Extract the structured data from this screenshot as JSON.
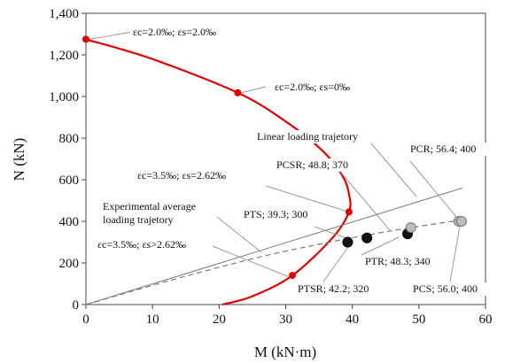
{
  "chart_data": {
    "type": "line",
    "xlabel": "M (kN·m)",
    "ylabel": "N (kN)",
    "xlim": [
      0,
      60
    ],
    "ylim": [
      0,
      1400
    ],
    "x_ticks": [
      "0",
      "10",
      "20",
      "30",
      "40",
      "50",
      "60"
    ],
    "y_ticks": [
      "0",
      "200",
      "400",
      "600",
      "800",
      "1,000",
      "1,200",
      "1,400"
    ],
    "grid": false,
    "series": [
      {
        "name": "",
        "style": "red-curve",
        "points": [
          [
            0,
            1275
          ],
          [
            10,
            1180
          ],
          [
            22.8,
            1018
          ],
          [
            30,
            880
          ],
          [
            35.5,
            740
          ],
          [
            38.5,
            620
          ],
          [
            39.5,
            530
          ],
          [
            39.5,
            445
          ],
          [
            37,
            320
          ],
          [
            31,
            140
          ],
          [
            25,
            40
          ],
          [
            20.5,
            0
          ]
        ]
      },
      {
        "name": "Linear loading trajetory",
        "style": "solid-gray",
        "points": [
          [
            0,
            0
          ],
          [
            56.5,
            560
          ]
        ]
      },
      {
        "name": "Experimental average loading trajetory",
        "style": "dashed-gray",
        "points": [
          [
            0,
            0
          ],
          [
            12,
            110
          ],
          [
            25,
            220
          ],
          [
            35,
            290
          ],
          [
            45,
            350
          ],
          [
            56,
            405
          ]
        ]
      }
    ],
    "limit_points": [
      {
        "x": 0,
        "y": 1275,
        "label": "εc=2.0‰; εs=2.0‰"
      },
      {
        "x": 22.8,
        "y": 1018,
        "label": "εc=2.0‰; εs=0‰"
      },
      {
        "x": 39.5,
        "y": 445,
        "label": "εc=3.5‰; εs=2.62‰"
      },
      {
        "x": 31,
        "y": 140,
        "label": "εc=3.5‰; εs>2.62‰"
      }
    ],
    "specimens": [
      {
        "x": 39.3,
        "y": 300,
        "label": "PTS; 39.3; 300",
        "color": "#111111"
      },
      {
        "x": 42.2,
        "y": 320,
        "label": "PTSR; 42.2; 320",
        "color": "#111111"
      },
      {
        "x": 48.3,
        "y": 340,
        "label": "PTR; 48.3; 340",
        "color": "#111111"
      },
      {
        "x": 48.8,
        "y": 370,
        "label": "PCSR; 48.8; 370",
        "color": "#bbbbbb"
      },
      {
        "x": 56.0,
        "y": 400,
        "label": "PCS; 56.0; 400",
        "color": "#bbbbbb"
      },
      {
        "x": 56.4,
        "y": 400,
        "label": "PCR; 56.4; 400",
        "color": "#bbbbbb"
      }
    ],
    "line_labels": {
      "linear": "Linear loading trajetory",
      "experimental_1": "Experimental average",
      "experimental_2": "loading trajetory"
    }
  }
}
